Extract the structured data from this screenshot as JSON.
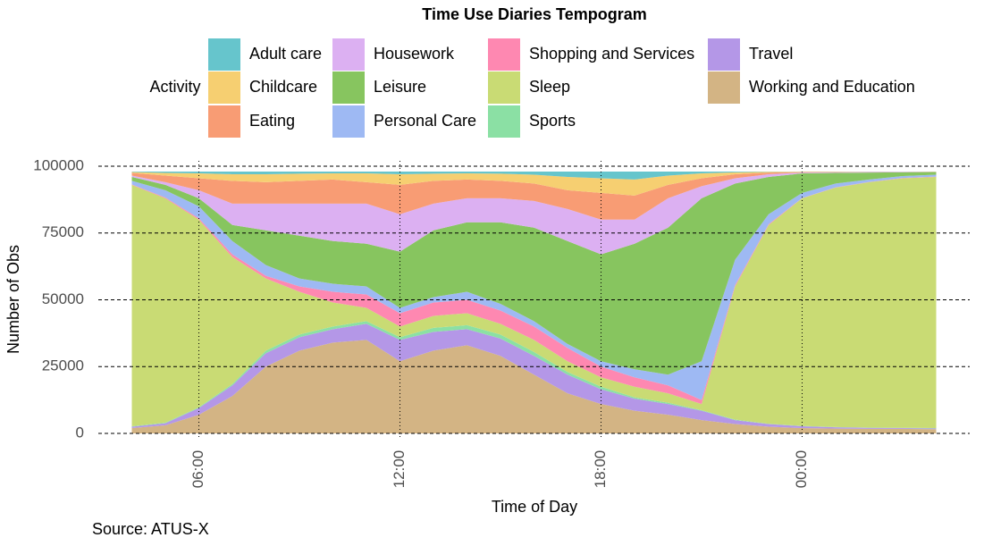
{
  "chart_data": {
    "type": "area",
    "stacked": true,
    "title": "Time Use Diaries Tempogram",
    "x_label": "Time of Day",
    "y_label": "Number of Obs",
    "legend_title": "Activity",
    "caption": "Source: ATUS-X",
    "x": [
      4,
      5,
      6,
      7,
      8,
      9,
      10,
      11,
      12,
      13,
      14,
      15,
      16,
      17,
      18,
      19,
      20,
      21,
      22,
      23,
      24,
      25,
      26,
      27,
      28
    ],
    "xlim": [
      3,
      29
    ],
    "xticks": [
      {
        "value": 6,
        "label": "06:00"
      },
      {
        "value": 12,
        "label": "12:00"
      },
      {
        "value": 18,
        "label": "18:00"
      },
      {
        "value": 24,
        "label": "00:00"
      }
    ],
    "ylim": [
      -2000,
      102000
    ],
    "yticks": [
      0,
      25000,
      50000,
      75000,
      100000
    ],
    "grid": true,
    "series": [
      {
        "name": "Adult care",
        "color": "#66c5cc",
        "values": [
          200,
          500,
          700,
          1000,
          1000,
          800,
          700,
          700,
          1000,
          800,
          700,
          800,
          1200,
          2000,
          2500,
          3000,
          1500,
          700,
          300,
          100,
          50,
          50,
          50,
          40,
          20
        ]
      },
      {
        "name": "Childcare",
        "color": "#f6cf71",
        "values": [
          300,
          1000,
          1800,
          2500,
          3000,
          2700,
          2300,
          3300,
          4000,
          2700,
          2300,
          2700,
          3300,
          5000,
          5500,
          6000,
          3500,
          1800,
          700,
          300,
          150,
          100,
          50,
          40,
          30
        ]
      },
      {
        "name": "Eating",
        "color": "#f89c74",
        "values": [
          1000,
          2500,
          4500,
          8500,
          8000,
          8500,
          9000,
          8000,
          11000,
          8500,
          7000,
          6500,
          6500,
          7000,
          10000,
          9000,
          5000,
          3000,
          1500,
          600,
          200,
          150,
          100,
          70,
          50
        ]
      },
      {
        "name": "Housework",
        "color": "#dcb0f2",
        "values": [
          500,
          1000,
          3000,
          8000,
          10000,
          12000,
          14000,
          15000,
          14000,
          10000,
          9000,
          9000,
          10000,
          12000,
          13000,
          9000,
          11000,
          4500,
          2000,
          1000,
          300,
          200,
          200,
          150,
          100
        ]
      },
      {
        "name": "Leisure",
        "color": "#87c55f",
        "values": [
          1500,
          2000,
          3000,
          6000,
          13000,
          16000,
          16000,
          16000,
          21000,
          25000,
          26000,
          30500,
          35000,
          38500,
          40000,
          47000,
          55000,
          61000,
          28500,
          14000,
          7300,
          4000,
          2600,
          1400,
          1000
        ]
      },
      {
        "name": "Personal Care",
        "color": "#9eb9f3",
        "values": [
          1300,
          2700,
          4500,
          5000,
          4000,
          3000,
          3000,
          3000,
          2000,
          2000,
          3000,
          2500,
          2000,
          1500,
          2000,
          3000,
          4000,
          14500,
          9500,
          3700,
          1900,
          1400,
          900,
          700,
          700
        ]
      },
      {
        "name": "Shopping and Services",
        "color": "#fe88b1",
        "values": [
          200,
          300,
          500,
          1000,
          1000,
          2000,
          4000,
          5000,
          5000,
          5000,
          5000,
          5000,
          5000,
          5000,
          4000,
          3500,
          3000,
          1500,
          500,
          300,
          100,
          100,
          100,
          100,
          100
        ]
      },
      {
        "name": "Sleep",
        "color": "#c9db74",
        "values": [
          90300,
          84000,
          70200,
          47500,
          27000,
          16000,
          9000,
          5000,
          4000,
          4500,
          4500,
          4000,
          4500,
          4000,
          3500,
          4000,
          3500,
          2300,
          49800,
          74400,
          85200,
          89600,
          91800,
          93400,
          94000
        ]
      },
      {
        "name": "Sports",
        "color": "#8be0a4",
        "values": [
          200,
          200,
          300,
          500,
          1000,
          1000,
          1000,
          1000,
          1000,
          1500,
          1500,
          1500,
          1500,
          1000,
          1000,
          500,
          500,
          200,
          200,
          100,
          100,
          100,
          100,
          100,
          100
        ]
      },
      {
        "name": "Travel",
        "color": "#b497e7",
        "values": [
          500,
          800,
          2500,
          4000,
          5000,
          5000,
          5000,
          6000,
          8000,
          7000,
          6000,
          6500,
          7000,
          7000,
          5500,
          4500,
          4000,
          3500,
          1500,
          1000,
          700,
          500,
          400,
          300,
          300
        ]
      },
      {
        "name": "Working and Education",
        "color": "#d3b484",
        "values": [
          2000,
          3000,
          7000,
          14000,
          25000,
          31000,
          34000,
          35000,
          27000,
          31000,
          33000,
          29000,
          22000,
          15000,
          11000,
          8500,
          7000,
          5000,
          3500,
          2500,
          2000,
          1800,
          1700,
          1700,
          1600
        ]
      }
    ]
  }
}
